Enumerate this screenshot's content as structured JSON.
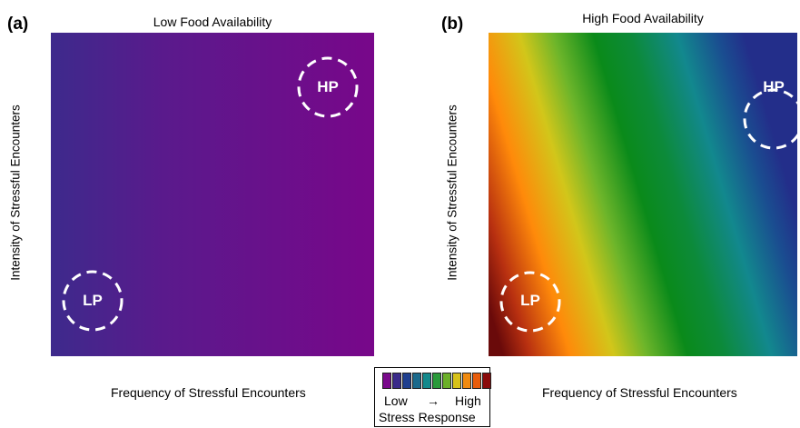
{
  "panels": [
    {
      "letter": "(a)",
      "title": "Low Food Availability",
      "ylabel": "Intensity of Stressful Encounters",
      "xlabel": "Frequency of Stressful Encounters",
      "markers": [
        "HP",
        "LP"
      ]
    },
    {
      "letter": "(b)",
      "title": "High Food Availability",
      "ylabel": "Intensity of Stressful Encounters",
      "xlabel": "Frequency of Stressful Encounters",
      "markers": [
        "HP",
        "LP"
      ]
    }
  ],
  "legend": {
    "low": "Low",
    "arrow": "→",
    "high": "High",
    "title": "Stress Response",
    "colors": [
      "#7a0a8c",
      "#3a2a8a",
      "#1f3f8f",
      "#1b6a8c",
      "#13898c",
      "#2a9a3a",
      "#6cb02a",
      "#d7c21a",
      "#f08a10",
      "#e85d0c",
      "#8a0a0a"
    ]
  },
  "colors": {
    "panel_a_left": "#3d2a8c",
    "panel_a_right": "#78078a"
  }
}
